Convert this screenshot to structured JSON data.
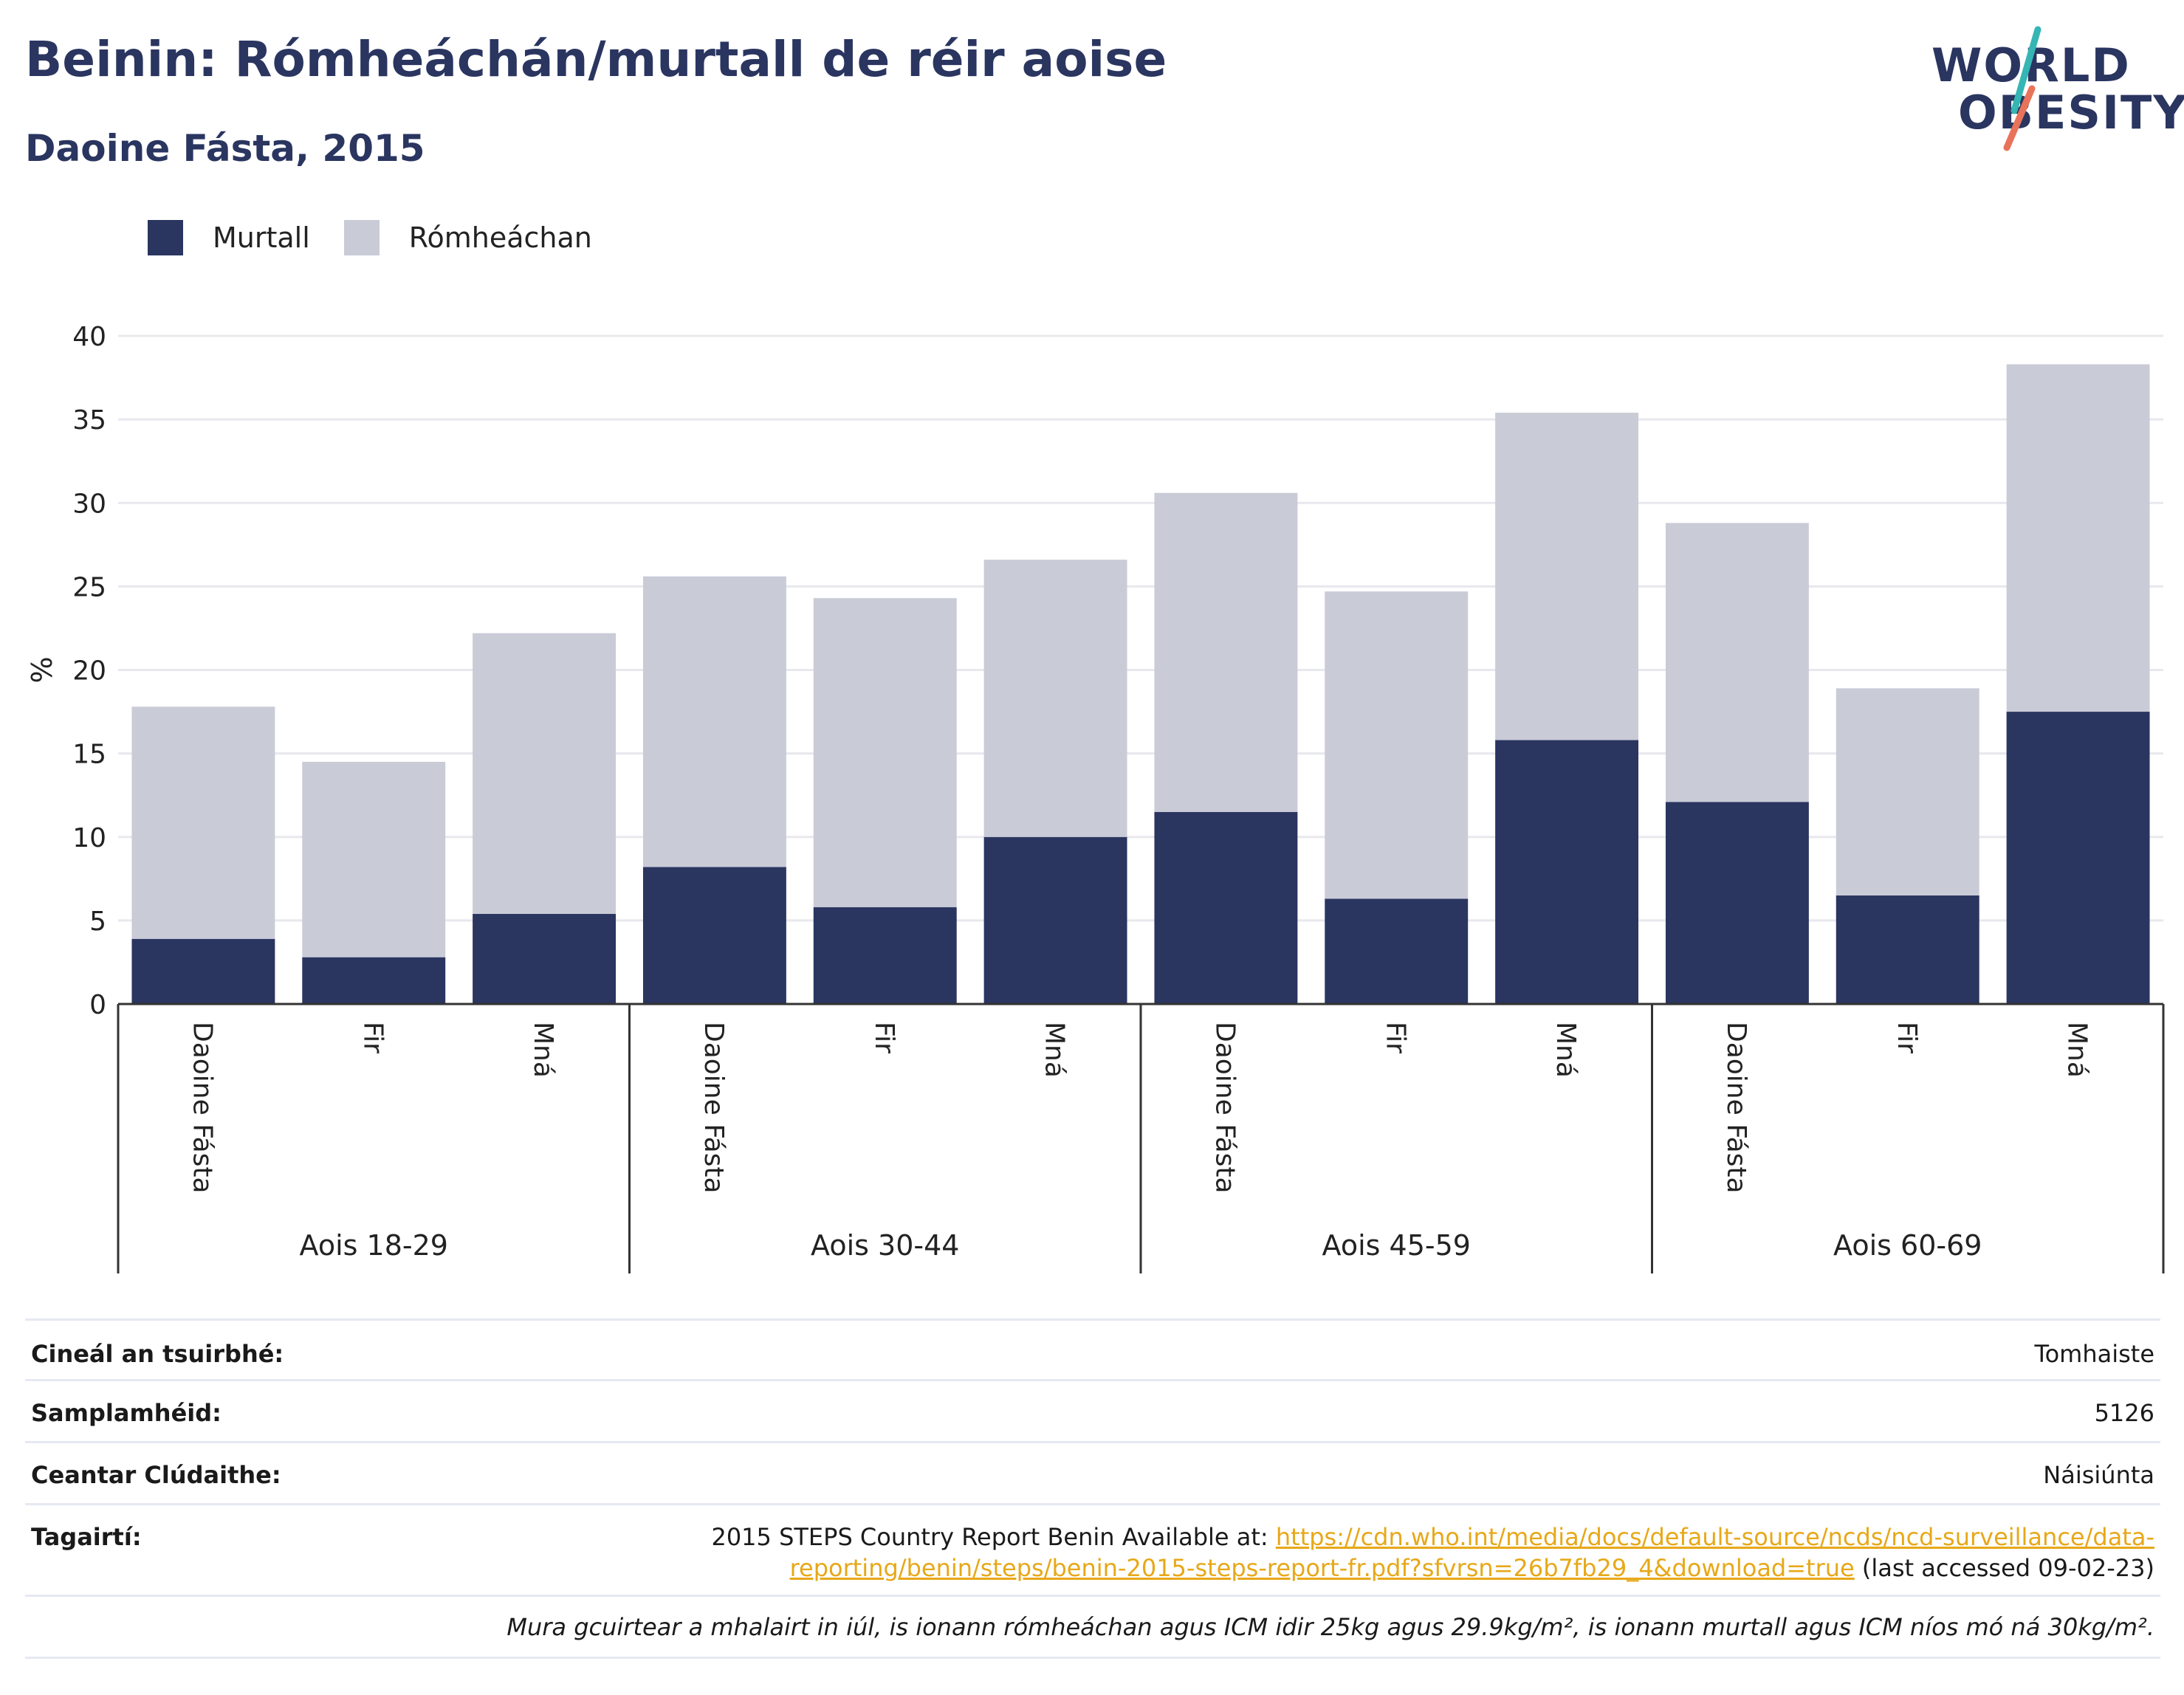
{
  "header": {
    "title": "Beinin: Rómheáchán/murtall de réir aoise",
    "subtitle": "Daoine Fásta, 2015"
  },
  "logo": {
    "line1": "WORLD",
    "line2": "OBESITY",
    "colors": {
      "navy": "#2a3560",
      "teal": "#35b6b4",
      "coral": "#e8735a"
    }
  },
  "legend": [
    {
      "label": "Murtall",
      "color": "#2a3560"
    },
    {
      "label": "Rómheáchan",
      "color": "#c9cbd7"
    }
  ],
  "chart_data": {
    "type": "bar",
    "stacked": true,
    "ylabel": "%",
    "ylim": [
      0,
      40
    ],
    "yticks": [
      0,
      5,
      10,
      15,
      20,
      25,
      30,
      35,
      40
    ],
    "grid": true,
    "legend_position": "top-left",
    "groups": [
      "Aois 18-29",
      "Aois 30-44",
      "Aois 45-59",
      "Aois 60-69"
    ],
    "categories": [
      "Daoine Fásta",
      "Fir",
      "Mná",
      "Daoine Fásta",
      "Fir",
      "Mná",
      "Daoine Fásta",
      "Fir",
      "Mná",
      "Daoine Fásta",
      "Fir",
      "Mná"
    ],
    "series": [
      {
        "name": "Murtall",
        "color": "#2a3560",
        "values": [
          3.9,
          2.8,
          5.4,
          8.2,
          5.8,
          10.0,
          11.5,
          6.3,
          15.8,
          12.1,
          6.5,
          17.5
        ]
      },
      {
        "name": "Rómheáchan",
        "color": "#c9cbd7",
        "values": [
          13.9,
          11.7,
          16.8,
          17.4,
          18.5,
          16.6,
          19.1,
          18.4,
          19.6,
          16.7,
          12.4,
          20.8
        ]
      }
    ]
  },
  "meta": {
    "survey_type_label": "Cineál an tsuirbhé:",
    "survey_type_value": "Tomhaiste",
    "sample_size_label": "Samplamhéid:",
    "sample_size_value": "5126",
    "coverage_label": "Ceantar Clúdaithe:",
    "coverage_value": "Náisiúnta",
    "references_label": "Tagairtí:",
    "reference_prefix": "2015 STEPS Country Report Benin Available at: ",
    "reference_link_part1": "https://cdn.who.int/media/docs/default-source/ncds/ncd-surveillance/data-",
    "reference_link_part2": "reporting/benin/steps/benin-2015-steps-report-fr.pdf?sfvrsn=26b7fb29_4&download=true",
    "reference_suffix": " (last accessed 09-02-23)",
    "footnote": "Mura gcuirtear a mhalairt in iúl, is ionann rómheáchan agus ICM idir 25kg agus 29.9kg/m², is ionann murtall agus ICM níos mó ná 30kg/m²."
  }
}
